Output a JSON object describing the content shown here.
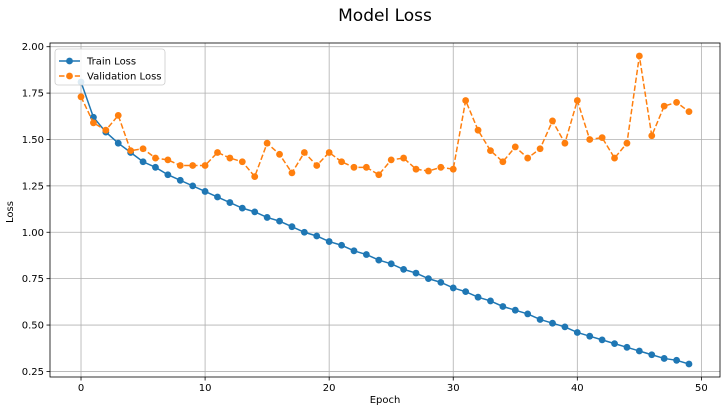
{
  "chart_data": {
    "type": "line",
    "title": "Model Loss",
    "xlabel": "Epoch",
    "ylabel": "Loss",
    "xlim": [
      -2.5,
      51.5
    ],
    "ylim": [
      0.22,
      2.02
    ],
    "xticks": [
      0,
      10,
      20,
      30,
      40,
      50
    ],
    "yticks": [
      0.25,
      0.5,
      0.75,
      1.0,
      1.25,
      1.5,
      1.75,
      2.0
    ],
    "ytick_labels": [
      "0.25",
      "0.50",
      "0.75",
      "1.00",
      "1.25",
      "1.50",
      "1.75",
      "2.00"
    ],
    "grid": true,
    "legend": "top-left",
    "x": [
      0,
      1,
      2,
      3,
      4,
      5,
      6,
      7,
      8,
      9,
      10,
      11,
      12,
      13,
      14,
      15,
      16,
      17,
      18,
      19,
      20,
      21,
      22,
      23,
      24,
      25,
      26,
      27,
      28,
      29,
      30,
      31,
      32,
      33,
      34,
      35,
      36,
      37,
      38,
      39,
      40,
      41,
      42,
      43,
      44,
      45,
      46,
      47,
      48,
      49
    ],
    "series": [
      {
        "name": "Train Loss",
        "color": "#1f77b4",
        "style": "solid",
        "values": [
          1.81,
          1.62,
          1.54,
          1.48,
          1.43,
          1.38,
          1.35,
          1.31,
          1.28,
          1.25,
          1.22,
          1.19,
          1.16,
          1.13,
          1.11,
          1.08,
          1.06,
          1.03,
          1.0,
          0.98,
          0.95,
          0.93,
          0.9,
          0.88,
          0.85,
          0.83,
          0.8,
          0.78,
          0.75,
          0.73,
          0.7,
          0.68,
          0.65,
          0.63,
          0.6,
          0.58,
          0.56,
          0.53,
          0.51,
          0.49,
          0.46,
          0.44,
          0.42,
          0.4,
          0.38,
          0.36,
          0.34,
          0.32,
          0.31,
          0.29
        ]
      },
      {
        "name": "Validation Loss",
        "color": "#ff7f0e",
        "style": "dashed",
        "values": [
          1.73,
          1.59,
          1.55,
          1.63,
          1.44,
          1.45,
          1.4,
          1.39,
          1.36,
          1.36,
          1.36,
          1.43,
          1.4,
          1.38,
          1.3,
          1.48,
          1.42,
          1.32,
          1.43,
          1.36,
          1.43,
          1.38,
          1.35,
          1.35,
          1.31,
          1.39,
          1.4,
          1.34,
          1.33,
          1.35,
          1.34,
          1.71,
          1.55,
          1.44,
          1.38,
          1.46,
          1.4,
          1.45,
          1.6,
          1.48,
          1.71,
          1.5,
          1.51,
          1.4,
          1.48,
          1.95,
          1.52,
          1.68,
          1.7,
          1.65
        ]
      }
    ]
  }
}
